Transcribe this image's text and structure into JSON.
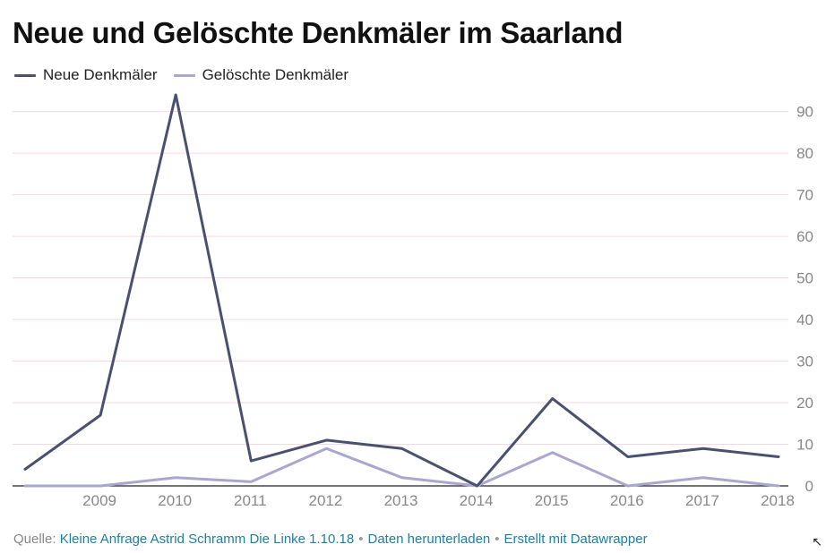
{
  "title": "Neue und Gelöschte Denkmäler im Saarland",
  "footer": {
    "source_prefix": "Quelle:",
    "source_link": "Kleine Anfrage Astrid Schramm Die Linke 1.10.18",
    "separator": "•",
    "download_link": "Daten herunterladen",
    "credit_link": "Erstellt mit Datawrapper"
  },
  "corner_icon": "resize-arrow-icon",
  "chart_data": {
    "type": "line",
    "title": "Neue und Gelöschte Denkmäler im Saarland",
    "x": [
      2008,
      2009,
      2010,
      2011,
      2012,
      2013,
      2014,
      2015,
      2016,
      2017,
      2018
    ],
    "xticks": [
      "2009",
      "2010",
      "2011",
      "2012",
      "2013",
      "2014",
      "2015",
      "2016",
      "2017",
      "2018"
    ],
    "ylim": [
      0,
      90
    ],
    "yticks": [
      "0",
      "10",
      "20",
      "30",
      "40",
      "50",
      "60",
      "70",
      "80",
      "90"
    ],
    "ytick_values": [
      0,
      10,
      20,
      30,
      40,
      50,
      60,
      70,
      80,
      90
    ],
    "grid": true,
    "legend_placement": "top-left",
    "y_axis_side": "right",
    "series": [
      {
        "name": "Neue Denkmäler",
        "color": "#4a5170",
        "values": [
          4,
          17,
          94,
          6,
          11,
          9,
          0,
          21,
          7,
          9,
          7
        ]
      },
      {
        "name": "Gelöschte Denkmäler",
        "color": "#a9a6d1",
        "values": [
          0,
          0,
          2,
          1,
          9,
          2,
          0,
          8,
          0,
          2,
          0
        ]
      }
    ],
    "colors": {
      "grid": "#f7d6e0",
      "axis": "#222222",
      "tick_label": "#888888"
    }
  }
}
